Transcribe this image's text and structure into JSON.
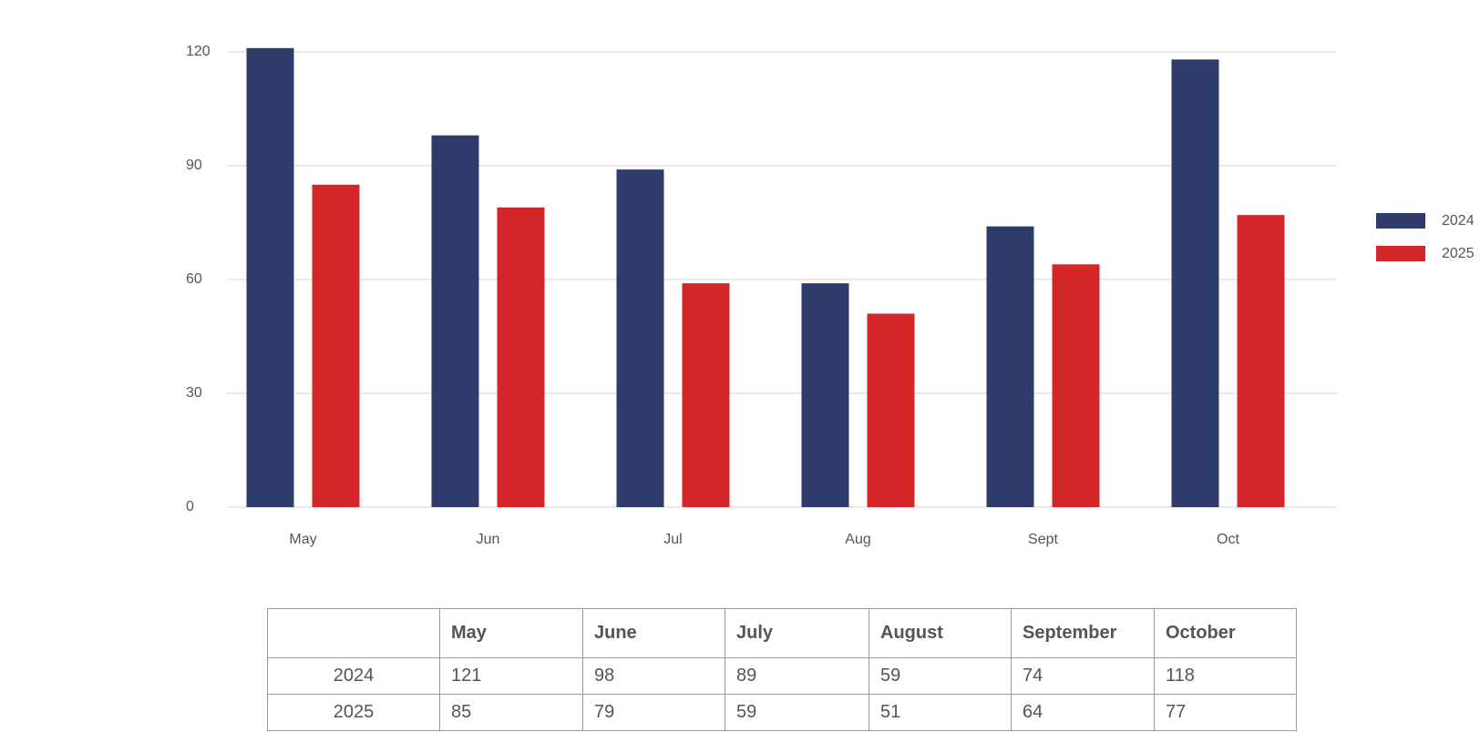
{
  "chart_data": {
    "type": "bar",
    "categories": [
      "May",
      "Jun",
      "Jul",
      "Aug",
      "Sept",
      "Oct"
    ],
    "series": [
      {
        "name": "2024",
        "color": "#2f3b6b",
        "values": [
          121,
          98,
          89,
          59,
          74,
          118
        ]
      },
      {
        "name": "2025",
        "color": "#d22628",
        "values": [
          85,
          79,
          59,
          51,
          64,
          77
        ]
      }
    ],
    "ylim": [
      0,
      120
    ],
    "yticks": [
      0,
      30,
      60,
      90,
      120
    ],
    "grid": true,
    "legend": "right"
  },
  "table": {
    "columns": [
      "May",
      "June",
      "July",
      "August",
      "September",
      "October"
    ]
  }
}
